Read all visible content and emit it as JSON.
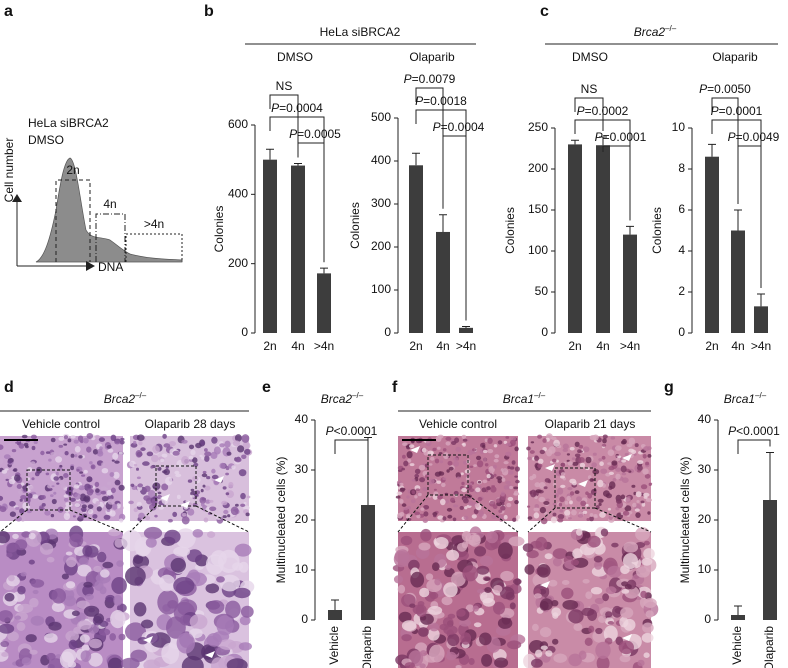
{
  "panels": {
    "a": {
      "label": "a",
      "line1": "HeLa siBRCA2",
      "line2": "DMSO",
      "ylabel": "Cell number",
      "xlabel": "DNA",
      "gates": [
        "2n",
        "4n",
        ">4n"
      ]
    },
    "b": {
      "label": "b",
      "header": "HeLa siBRCA2"
    },
    "c": {
      "label": "c",
      "header": "Brca2–/–"
    },
    "d": {
      "label": "d",
      "header": "Brca2–/–",
      "left": "Vehicle control",
      "right": "Olaparib 28 days"
    },
    "e": {
      "label": "e"
    },
    "f": {
      "label": "f",
      "header": "Brca1–/–",
      "left": "Vehicle control",
      "right": "Olaparib 21 days"
    },
    "g": {
      "label": "g"
    }
  },
  "chart_data": [
    {
      "type": "bar",
      "title": "DMSO",
      "ylabel": "Colonies",
      "categories": [
        "2n",
        "4n",
        ">4n"
      ],
      "values": [
        500,
        483,
        172
      ],
      "errors": [
        30,
        6,
        15
      ],
      "color": "#3d3d3d",
      "ylim": [
        0,
        600
      ],
      "yticks": [
        0,
        200,
        400,
        600
      ],
      "annotations": [
        "NS",
        "P=0.0004",
        "P=0.0005"
      ]
    },
    {
      "type": "bar",
      "title": "Olaparib",
      "ylabel": "Colonies",
      "categories": [
        "2n",
        "4n",
        ">4n"
      ],
      "values": [
        390,
        235,
        12
      ],
      "errors": [
        28,
        40,
        3
      ],
      "color": "#3d3d3d",
      "ylim": [
        0,
        500
      ],
      "yticks": [
        0,
        100,
        200,
        300,
        400,
        500
      ],
      "annotations": [
        "P=0.0079",
        "P=0.0018",
        "P=0.0004"
      ]
    },
    {
      "type": "bar",
      "title": "DMSO",
      "ylabel": "Colonies",
      "categories": [
        "2n",
        "4n",
        ">4n"
      ],
      "values": [
        230,
        229,
        120
      ],
      "errors": [
        5,
        10,
        10
      ],
      "color": "#3d3d3d",
      "ylim": [
        0,
        250
      ],
      "yticks": [
        0,
        50,
        100,
        150,
        200,
        250
      ],
      "annotations": [
        "NS",
        "P=0.0002",
        "P=0.0001"
      ]
    },
    {
      "type": "bar",
      "title": "Olaparib",
      "ylabel": "Colonies",
      "categories": [
        "2n",
        "4n",
        ">4n"
      ],
      "values": [
        8.6,
        5.0,
        1.3
      ],
      "errors": [
        0.6,
        1.0,
        0.6
      ],
      "color": "#3d3d3d",
      "ylim": [
        0,
        10
      ],
      "yticks": [
        0,
        2,
        4,
        6,
        8,
        10
      ],
      "annotations": [
        "P=0.0050",
        "P=0.0001",
        "P=0.0049"
      ]
    },
    {
      "type": "bar",
      "title": "Brca2–/–",
      "ylabel": "Multinucleated cells (%)",
      "categories": [
        "Vehicle",
        "Olaparib"
      ],
      "values": [
        2,
        23
      ],
      "errors": [
        2,
        13.5
      ],
      "color": "#3d3d3d",
      "ylim": [
        0,
        40
      ],
      "yticks": [
        0,
        10,
        20,
        30,
        40
      ],
      "annotations": [
        "P<0.0001"
      ]
    },
    {
      "type": "bar",
      "title": "Brca1–/–",
      "ylabel": "Multinucleated cells (%)",
      "categories": [
        "Vehicle",
        "Olaparib"
      ],
      "values": [
        1,
        24
      ],
      "errors": [
        1.8,
        9.5
      ],
      "color": "#3d3d3d",
      "ylim": [
        0,
        40
      ],
      "yticks": [
        0,
        10,
        20,
        30,
        40
      ],
      "annotations": [
        "P<0.0001"
      ]
    }
  ]
}
